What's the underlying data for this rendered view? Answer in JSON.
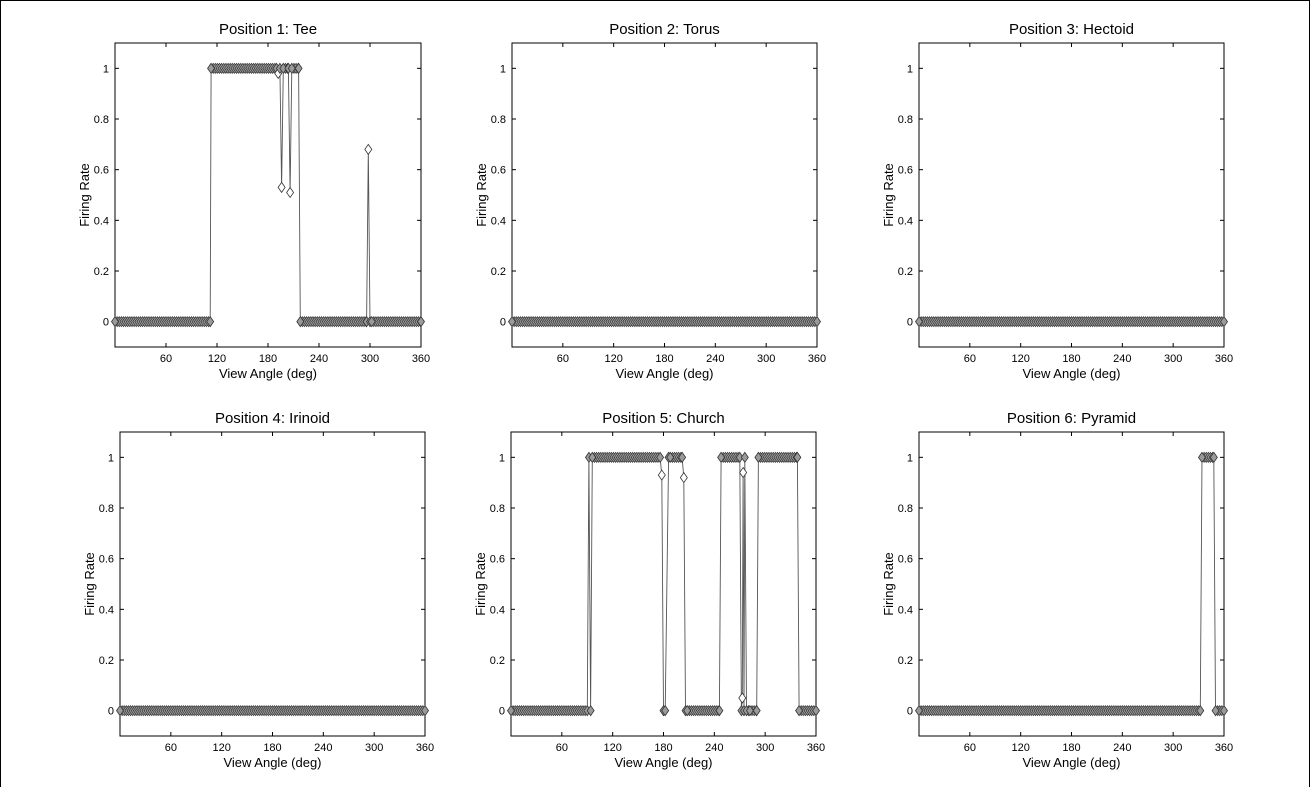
{
  "chart_data": [
    {
      "type": "line",
      "title": "Position 1: Tee",
      "xlabel": "View Angle (deg)",
      "ylabel": "Firing Rate",
      "xlim": [
        0,
        360
      ],
      "ylim": [
        -0.1,
        1.1
      ],
      "xticks": [
        60,
        120,
        180,
        240,
        300,
        360
      ],
      "yticks": [
        0,
        0.2,
        0.4,
        0.6,
        0.8,
        1
      ],
      "marker": "diamond",
      "series": [
        {
          "x": [
            0,
            112,
            113,
            190,
            192,
            194,
            196,
            198,
            204,
            206,
            208,
            216,
            218,
            296,
            298,
            300,
            302,
            360
          ],
          "y": [
            0,
            0,
            1,
            1,
            0.98,
            1,
            0.53,
            1,
            1,
            0.51,
            1,
            1,
            0,
            0,
            0.68,
            0,
            0,
            0
          ]
        }
      ]
    },
    {
      "type": "line",
      "title": "Position 2: Torus",
      "xlabel": "View Angle (deg)",
      "ylabel": "Firing Rate",
      "xlim": [
        0,
        360
      ],
      "ylim": [
        -0.1,
        1.1
      ],
      "xticks": [
        60,
        120,
        180,
        240,
        300,
        360
      ],
      "yticks": [
        0,
        0.2,
        0.4,
        0.6,
        0.8,
        1
      ],
      "marker": "diamond",
      "series": [
        {
          "x": [
            0,
            360
          ],
          "y": [
            0,
            0
          ]
        }
      ]
    },
    {
      "type": "line",
      "title": "Position 3: Hectoid",
      "xlabel": "View Angle (deg)",
      "ylabel": "Firing Rate",
      "xlim": [
        0,
        360
      ],
      "ylim": [
        -0.1,
        1.1
      ],
      "xticks": [
        60,
        120,
        180,
        240,
        300,
        360
      ],
      "yticks": [
        0,
        0.2,
        0.4,
        0.6,
        0.8,
        1
      ],
      "marker": "diamond",
      "series": [
        {
          "x": [
            0,
            360
          ],
          "y": [
            0,
            0
          ]
        }
      ]
    },
    {
      "type": "line",
      "title": "Position 4: Irinoid",
      "xlabel": "View Angle (deg)",
      "ylabel": "Firing Rate",
      "xlim": [
        0,
        360
      ],
      "ylim": [
        -0.1,
        1.1
      ],
      "xticks": [
        60,
        120,
        180,
        240,
        300,
        360
      ],
      "yticks": [
        0,
        0.2,
        0.4,
        0.6,
        0.8,
        1
      ],
      "marker": "diamond",
      "series": [
        {
          "x": [
            0,
            360
          ],
          "y": [
            0,
            0
          ]
        }
      ]
    },
    {
      "type": "line",
      "title": "Position 5: Church",
      "xlabel": "View Angle (deg)",
      "ylabel": "Firing Rate",
      "xlim": [
        0,
        360
      ],
      "ylim": [
        -0.1,
        1.1
      ],
      "xticks": [
        60,
        120,
        180,
        240,
        300,
        360
      ],
      "yticks": [
        0,
        0.2,
        0.4,
        0.6,
        0.8,
        1
      ],
      "marker": "diamond",
      "series": [
        {
          "x": [
            0,
            90,
            92,
            94,
            96,
            176,
            178,
            180,
            182,
            186,
            188,
            202,
            204,
            206,
            208,
            246,
            248,
            270,
            272,
            273,
            274,
            275,
            276,
            278,
            282,
            290,
            292,
            338,
            340,
            360
          ],
          "y": [
            0,
            0,
            1,
            0,
            1,
            1,
            0.93,
            0,
            0,
            1,
            1,
            1,
            0.92,
            0,
            0,
            0,
            1,
            1,
            0,
            0.05,
            0.94,
            0,
            1,
            0,
            0,
            0,
            1,
            1,
            0,
            0
          ]
        }
      ]
    },
    {
      "type": "line",
      "title": "Position 6: Pyramid",
      "xlabel": "View Angle (deg)",
      "ylabel": "Firing Rate",
      "xlim": [
        0,
        360
      ],
      "ylim": [
        -0.1,
        1.1
      ],
      "xticks": [
        60,
        120,
        180,
        240,
        300,
        360
      ],
      "yticks": [
        0,
        0.2,
        0.4,
        0.6,
        0.8,
        1
      ],
      "marker": "diamond",
      "series": [
        {
          "x": [
            0,
            332,
            334,
            348,
            350,
            360
          ],
          "y": [
            0,
            0,
            1,
            1,
            0,
            0
          ]
        }
      ]
    }
  ]
}
